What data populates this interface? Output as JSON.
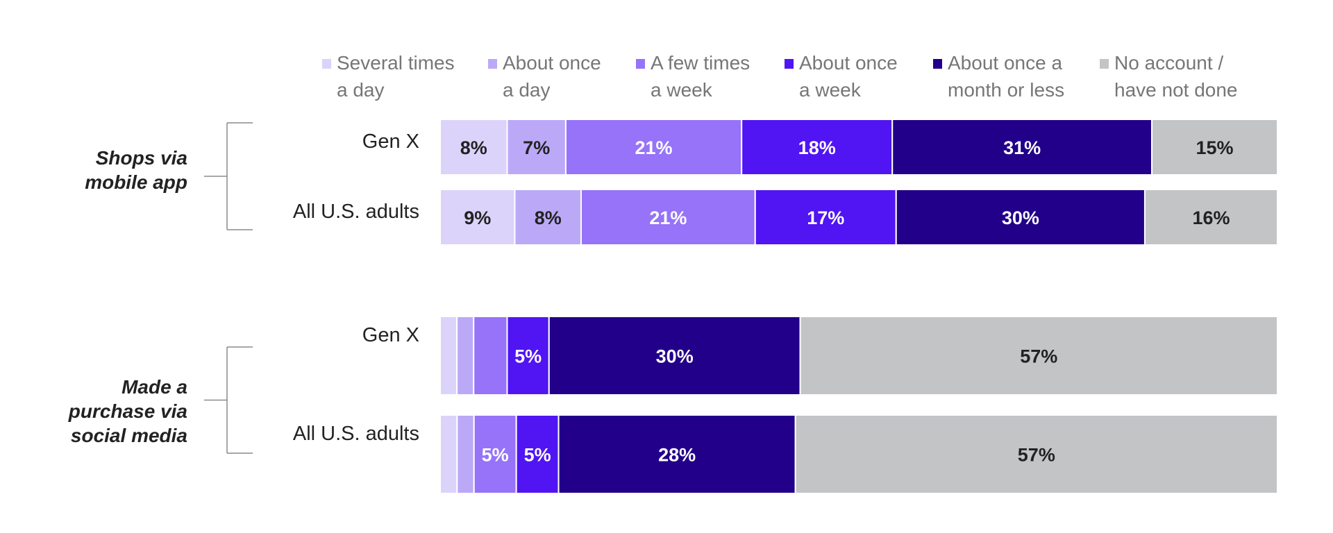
{
  "chart_data": {
    "type": "bar",
    "orientation": "horizontal",
    "stacked": true,
    "percent_unit": "%",
    "legend_position": "top",
    "grid": false,
    "xlim": [
      0,
      100
    ],
    "segment_categories": [
      {
        "name_lines": [
          "Several times",
          "a day"
        ],
        "color": "#DCD3FB"
      },
      {
        "name_lines": [
          "About once",
          "a day"
        ],
        "color": "#BBA9F8"
      },
      {
        "name_lines": [
          "A few times",
          "a week"
        ],
        "color": "#9673F8"
      },
      {
        "name_lines": [
          "About once",
          "a week"
        ],
        "color": "#5015F2"
      },
      {
        "name_lines": [
          "About once a",
          "month or less"
        ],
        "color": "#220089"
      },
      {
        "name_lines": [
          "No account /",
          "have not done"
        ],
        "color": "#C2C4C6"
      }
    ],
    "label_colors": [
      "#222222",
      "#222222",
      "#ffffff",
      "#ffffff",
      "#ffffff",
      "#222222"
    ],
    "groups": [
      {
        "label_lines": [
          "Shops via",
          "mobile app"
        ],
        "rows": [
          {
            "label": "Gen X",
            "values": [
              8,
              7,
              21,
              18,
              31,
              15
            ],
            "labels": [
              "8%",
              "7%",
              "21%",
              "18%",
              "31%",
              "15%"
            ]
          },
          {
            "label": "All U.S. adults",
            "values": [
              9,
              8,
              21,
              17,
              30,
              16
            ],
            "labels": [
              "9%",
              "8%",
              "21%",
              "17%",
              "30%",
              "16%"
            ]
          }
        ]
      },
      {
        "label_lines": [
          "Made a",
          "purchase via",
          "social media"
        ],
        "rows": [
          {
            "label": "Gen X",
            "values": [
              2,
              2,
              4,
              5,
              30,
              57
            ],
            "labels": [
              "",
              "",
              "",
              "5%",
              "30%",
              "57%"
            ]
          },
          {
            "label": "All U.S. adults",
            "values": [
              2,
              2,
              5,
              5,
              28,
              57
            ],
            "labels": [
              "",
              "",
              "5%",
              "5%",
              "28%",
              "57%"
            ]
          }
        ]
      }
    ]
  }
}
